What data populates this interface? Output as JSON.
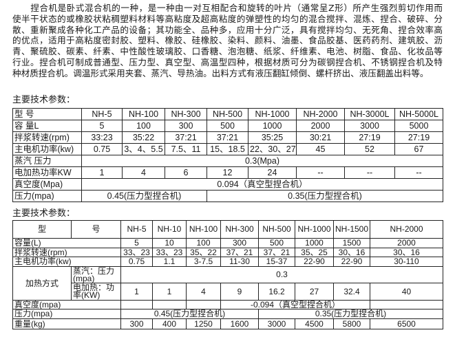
{
  "intro": {
    "lines": [
      "　　捏合机是卧式混合机的一种，是一种由一对互相配合和旋转的叶片（通常呈Z形）所产生强烈剪切作用而",
      "使半干状态的或橡胶状粘稠塑料材料等高粘度及超高粘度的弹塑性的均匀的混合搅拌、混炼、捏合、破碎、分",
      "散、重新聚成各种化工产品的设备；其功能全、品种多，应用十分广泛，具有搅拌均匀、无死角、捏合效率高",
      "的优点，适用于高粘度密封胶、塑料、橡胶、硅橡胶、染料、颜料、油墨、食品胶基、医药药剂、建筑胶、沥",
      "青、聚硫胶、碳素、纤素、中性酸性玻璃胶、口香糖、泡泡糖、纸浆、纤维素、电池、树脂、食品、化妆品等",
      "行业。捏合机可制成普通型、压力型、真空型、高温型四种，根据材质可分为碳钢捏合机、不锈钢捏合机及特",
      "种材质捏合机。调温形式采用夹套、蒸汽、导热油。出料方式有液压翻缸倾倒、螺杆挤出、液压翻盖出料等。"
    ]
  },
  "table1": {
    "title": "主要技术参数：",
    "header": [
      "型 号",
      "NH-5",
      "NH-100",
      "NH-300",
      "NH-500",
      "NH-1000",
      "NH-2000",
      "NH-3000L",
      "NH-5000L"
    ],
    "capacity": [
      "容 量L",
      "5",
      "100",
      "300",
      "500",
      "1000",
      "2000",
      "3000",
      "5000"
    ],
    "speed": [
      "拌浆转速(rpm)",
      "33:23",
      "35:22",
      "37:21",
      "37:21",
      "35:25",
      "30:21",
      "27:19",
      "27:19"
    ],
    "power": [
      "主电机功率(kw)",
      "0.75",
      "3、4、5.5",
      "7.5、11",
      "15、18.5",
      "22、30、27",
      "45",
      "52",
      "67"
    ],
    "steam": [
      "蒸汽 压力",
      "0.3(Mpa)"
    ],
    "heat": [
      "电加热功率KW",
      "1",
      "4",
      "6",
      "12",
      "24",
      "--",
      "--",
      "--"
    ],
    "vacuum": [
      "真空度(Mpa)",
      "0.094（真空型捏合机）"
    ],
    "pressure": [
      "压力(mpa)",
      "0.45(压力型捏合机)",
      "0.35(压力型捏合机)"
    ]
  },
  "table2": {
    "title": "主要技术参数：",
    "header": [
      "型",
      "号",
      "NH-5",
      "NH-10",
      "NH-100",
      "NH-300",
      "NH-500",
      "NH-1000",
      "NH-1500",
      "NH-2000"
    ],
    "capacity": [
      "容量(L)",
      "5",
      "10",
      "100",
      "300",
      "500",
      "1000",
      "1500",
      "2000"
    ],
    "speed": [
      "拌浆转速(rpm)",
      "33、23",
      "33、23",
      "35、22",
      "37、21",
      "37、21",
      "35、25",
      "30、16",
      "30、16"
    ],
    "power": [
      "主电机功率(kw)",
      "0.75",
      "1.1",
      "3-7.5",
      "11-30",
      "15-37",
      "22-90",
      "22-90",
      "30-110"
    ],
    "heating_label": "加热方式",
    "steam": [
      "蒸汽：压力(mpa)",
      "0.3"
    ],
    "electric": [
      "电加热：功率(KW)",
      "1",
      "1",
      "4",
      "9",
      "16.2",
      "27",
      "32.4",
      "40"
    ],
    "vacuum": [
      "真空度(mpa)",
      "-0.094（真空型捏合机）"
    ],
    "pressure": [
      "压力(mpa)",
      "0.45(压力型捏合机)",
      "0.35(压力型捏合机)"
    ],
    "weight": [
      "重量(kg)",
      "300",
      "400",
      "1250",
      "1600",
      "3000",
      "4500",
      "5800",
      "6500"
    ]
  }
}
